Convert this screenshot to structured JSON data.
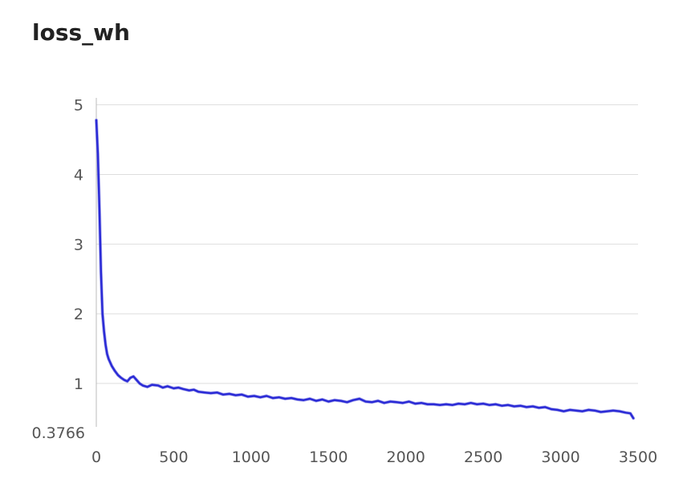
{
  "chart_data": {
    "type": "line",
    "title": "loss_wh",
    "xlabel": "",
    "ylabel": "",
    "xlim": [
      0,
      3500
    ],
    "ylim": [
      0.3766,
      5.1
    ],
    "ymin_label": "0.3766",
    "xticks": [
      0,
      500,
      1000,
      1500,
      2000,
      2500,
      3000,
      3500
    ],
    "yticks": [
      1,
      2,
      3,
      4,
      5
    ],
    "grid": true,
    "legend": "none",
    "colors": {
      "smoothed": "#2b2bd6",
      "raw": "#8c8ce6",
      "grid": "#dddddd",
      "axis": "#bbbbbb"
    },
    "series": [
      {
        "x": [
          0,
          10,
          20,
          30,
          40,
          50,
          60,
          70,
          80,
          100,
          120,
          140,
          160,
          180,
          200,
          220,
          240,
          260,
          280,
          300,
          330,
          360,
          400,
          430,
          460,
          500,
          530,
          560,
          600,
          630,
          660,
          700,
          740,
          780,
          820,
          860,
          900,
          940,
          980,
          1020,
          1060,
          1100,
          1140,
          1180,
          1220,
          1260,
          1300,
          1340,
          1380,
          1420,
          1460,
          1500,
          1540,
          1580,
          1620,
          1660,
          1700,
          1740,
          1780,
          1820,
          1860,
          1900,
          1940,
          1980,
          2020,
          2060,
          2100,
          2140,
          2180,
          2220,
          2260,
          2300,
          2340,
          2380,
          2420,
          2460,
          2500,
          2540,
          2580,
          2620,
          2660,
          2700,
          2740,
          2780,
          2820,
          2860,
          2900,
          2940,
          2980,
          3020,
          3060,
          3100,
          3140,
          3180,
          3220,
          3260,
          3300,
          3340,
          3380,
          3420,
          3450,
          3470
        ],
        "values": [
          4.78,
          4.3,
          3.5,
          2.6,
          2.0,
          1.75,
          1.55,
          1.42,
          1.35,
          1.25,
          1.18,
          1.12,
          1.08,
          1.05,
          1.03,
          1.08,
          1.1,
          1.05,
          1.0,
          0.97,
          0.95,
          0.98,
          0.97,
          0.94,
          0.96,
          0.93,
          0.94,
          0.92,
          0.9,
          0.91,
          0.88,
          0.87,
          0.86,
          0.87,
          0.84,
          0.85,
          0.83,
          0.84,
          0.81,
          0.82,
          0.8,
          0.82,
          0.79,
          0.8,
          0.78,
          0.79,
          0.77,
          0.76,
          0.78,
          0.75,
          0.77,
          0.74,
          0.76,
          0.75,
          0.73,
          0.76,
          0.78,
          0.74,
          0.73,
          0.75,
          0.72,
          0.74,
          0.73,
          0.72,
          0.74,
          0.71,
          0.72,
          0.7,
          0.7,
          0.69,
          0.7,
          0.69,
          0.71,
          0.7,
          0.72,
          0.7,
          0.71,
          0.69,
          0.7,
          0.68,
          0.69,
          0.67,
          0.68,
          0.66,
          0.67,
          0.65,
          0.66,
          0.63,
          0.62,
          0.6,
          0.62,
          0.61,
          0.6,
          0.62,
          0.61,
          0.59,
          0.6,
          0.61,
          0.6,
          0.58,
          0.57,
          0.5
        ]
      }
    ]
  }
}
